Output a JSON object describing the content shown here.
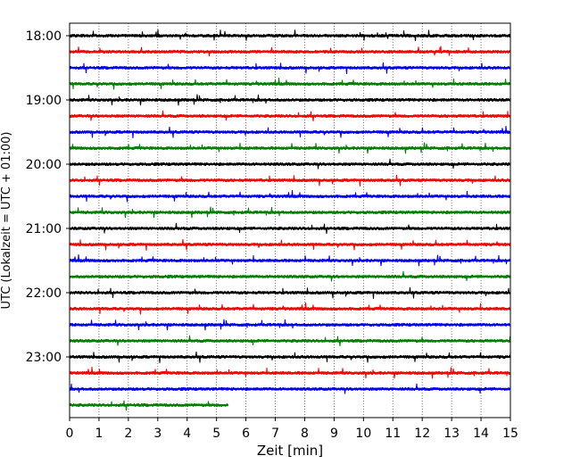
{
  "chart_data": {
    "type": "line",
    "title": "",
    "xlabel": "Zeit  [min]",
    "ylabel": "UTC (Lokalzeit = UTC + 01:00)",
    "xlim": [
      0,
      15
    ],
    "x_ticks": [
      0,
      1,
      2,
      3,
      4,
      5,
      6,
      7,
      8,
      9,
      10,
      11,
      12,
      13,
      14,
      15
    ],
    "x_tick_labels": [
      "0",
      "1",
      "2",
      "3",
      "4",
      "5",
      "6",
      "7",
      "8",
      "9",
      "10",
      "11",
      "12",
      "13",
      "14",
      "15"
    ],
    "y_tick_labels": [
      "18:00",
      "19:00",
      "20:00",
      "21:00",
      "22:00",
      "23:00"
    ],
    "y_tick_rows": [
      0,
      4,
      8,
      12,
      16,
      20
    ],
    "x_grid": true,
    "x_grid_style": "dotted",
    "legend": "none",
    "color_cycle": [
      "#000000",
      "#ff0000",
      "#0000ff",
      "#008000"
    ],
    "series": [
      {
        "start": "18:00",
        "duration_min": 15,
        "color": "#000000"
      },
      {
        "start": "18:15",
        "duration_min": 15,
        "color": "#ff0000"
      },
      {
        "start": "18:30",
        "duration_min": 15,
        "color": "#0000ff"
      },
      {
        "start": "18:45",
        "duration_min": 15,
        "color": "#008000"
      },
      {
        "start": "19:00",
        "duration_min": 15,
        "color": "#000000"
      },
      {
        "start": "19:15",
        "duration_min": 15,
        "color": "#ff0000"
      },
      {
        "start": "19:30",
        "duration_min": 15,
        "color": "#0000ff"
      },
      {
        "start": "19:45",
        "duration_min": 15,
        "color": "#008000"
      },
      {
        "start": "20:00",
        "duration_min": 15,
        "color": "#000000"
      },
      {
        "start": "20:15",
        "duration_min": 15,
        "color": "#ff0000"
      },
      {
        "start": "20:30",
        "duration_min": 15,
        "color": "#0000ff"
      },
      {
        "start": "20:45",
        "duration_min": 15,
        "color": "#008000"
      },
      {
        "start": "21:00",
        "duration_min": 15,
        "color": "#000000"
      },
      {
        "start": "21:15",
        "duration_min": 15,
        "color": "#ff0000"
      },
      {
        "start": "21:30",
        "duration_min": 15,
        "color": "#0000ff"
      },
      {
        "start": "21:45",
        "duration_min": 15,
        "color": "#008000"
      },
      {
        "start": "22:00",
        "duration_min": 15,
        "color": "#000000"
      },
      {
        "start": "22:15",
        "duration_min": 15,
        "color": "#ff0000"
      },
      {
        "start": "22:30",
        "duration_min": 15,
        "color": "#0000ff"
      },
      {
        "start": "22:45",
        "duration_min": 15,
        "color": "#008000"
      },
      {
        "start": "23:00",
        "duration_min": 15,
        "color": "#000000"
      },
      {
        "start": "23:15",
        "duration_min": 15,
        "color": "#ff0000"
      },
      {
        "start": "23:30",
        "duration_min": 15,
        "color": "#0000ff"
      },
      {
        "start": "23:45",
        "duration_min": 5.4,
        "color": "#008000"
      }
    ]
  }
}
